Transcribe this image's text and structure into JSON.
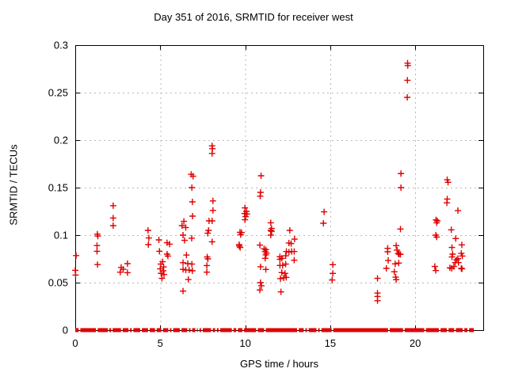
{
  "chart_data": {
    "type": "scatter",
    "title": "Day 351 of 2016, SRMTID for receiver west",
    "xlabel": "GPS time / hours",
    "ylabel": "SRMTID / TECUs",
    "xlim": [
      0,
      24
    ],
    "ylim": [
      0,
      0.3
    ],
    "xticks": [
      0,
      5,
      10,
      15,
      20
    ],
    "xtick_labels": [
      "0",
      "5",
      "10",
      "15",
      "20"
    ],
    "yticks": [
      0,
      0.05,
      0.1,
      0.15,
      0.2,
      0.25,
      0.3
    ],
    "ytick_labels": [
      "0",
      "0.05",
      "0.1",
      "0.15",
      "0.2",
      "0.25",
      "0.3"
    ],
    "grid": true,
    "legend": "none",
    "marker": "plus",
    "marker_color": "#e00000",
    "grid_color": "#b8b8b8",
    "axis_color": "#000000",
    "series": [
      {
        "name": "SRMTID",
        "points": [
          [
            0.0,
            0.063
          ],
          [
            0.02,
            0.058
          ],
          [
            0.05,
            0.0785
          ],
          [
            1.28,
            0.089
          ],
          [
            1.28,
            0.083
          ],
          [
            1.3,
            0.101
          ],
          [
            1.33,
            0.099
          ],
          [
            1.31,
            0.069
          ],
          [
            2.23,
            0.131
          ],
          [
            2.23,
            0.118
          ],
          [
            2.23,
            0.11
          ],
          [
            2.65,
            0.061
          ],
          [
            2.7,
            0.066
          ],
          [
            2.82,
            0.064
          ],
          [
            3.07,
            0.07
          ],
          [
            3.07,
            0.0605
          ],
          [
            4.28,
            0.105
          ],
          [
            4.33,
            0.097
          ],
          [
            4.3,
            0.09
          ],
          [
            4.92,
            0.095
          ],
          [
            4.95,
            0.083
          ],
          [
            5.4,
            0.092
          ],
          [
            5.55,
            0.0905
          ],
          [
            5.4,
            0.08
          ],
          [
            5.45,
            0.078
          ],
          [
            5.14,
            0.072
          ],
          [
            5.03,
            0.0695
          ],
          [
            5.2,
            0.0665
          ],
          [
            5.0,
            0.0645
          ],
          [
            5.17,
            0.0625
          ],
          [
            5.05,
            0.0598
          ],
          [
            5.22,
            0.0585
          ],
          [
            5.1,
            0.0545
          ],
          [
            6.28,
            0.11
          ],
          [
            6.39,
            0.1145
          ],
          [
            6.5,
            0.108
          ],
          [
            6.82,
            0.164
          ],
          [
            6.93,
            0.162
          ],
          [
            6.86,
            0.15
          ],
          [
            6.89,
            0.135
          ],
          [
            6.9,
            0.12
          ],
          [
            6.34,
            0.1
          ],
          [
            6.43,
            0.0945
          ],
          [
            6.85,
            0.0967
          ],
          [
            6.54,
            0.079
          ],
          [
            6.34,
            0.071
          ],
          [
            6.62,
            0.07
          ],
          [
            6.86,
            0.0695
          ],
          [
            6.34,
            0.064
          ],
          [
            6.5,
            0.0633
          ],
          [
            6.7,
            0.0633
          ],
          [
            6.89,
            0.0625
          ],
          [
            6.65,
            0.0533
          ],
          [
            6.34,
            0.0411
          ],
          [
            7.79,
            0.102
          ],
          [
            7.76,
            0.077
          ],
          [
            7.8,
            0.075
          ],
          [
            7.74,
            0.068
          ],
          [
            7.74,
            0.061
          ],
          [
            7.87,
            0.115
          ],
          [
            8.05,
            0.115
          ],
          [
            7.84,
            0.105
          ],
          [
            8.05,
            0.194
          ],
          [
            8.07,
            0.191
          ],
          [
            8.05,
            0.186
          ],
          [
            8.1,
            0.136
          ],
          [
            8.1,
            0.126
          ],
          [
            8.05,
            0.093
          ],
          [
            9.69,
            0.103
          ],
          [
            9.78,
            0.1028
          ],
          [
            9.73,
            0.1005
          ],
          [
            9.64,
            0.09
          ],
          [
            9.65,
            0.0885
          ],
          [
            9.7,
            0.087
          ],
          [
            9.98,
            0.1287
          ],
          [
            10.07,
            0.125
          ],
          [
            9.96,
            0.1228
          ],
          [
            10.1,
            0.1222
          ],
          [
            10.02,
            0.1195
          ],
          [
            9.98,
            0.1162
          ],
          [
            10.93,
            0.1625
          ],
          [
            10.9,
            0.145
          ],
          [
            10.88,
            0.141
          ],
          [
            10.86,
            0.0895
          ],
          [
            11.11,
            0.0856
          ],
          [
            11.21,
            0.0847
          ],
          [
            11.17,
            0.0828
          ],
          [
            11.25,
            0.0811
          ],
          [
            11.21,
            0.0792
          ],
          [
            11.17,
            0.0756
          ],
          [
            10.9,
            0.0667
          ],
          [
            11.21,
            0.0639
          ],
          [
            10.9,
            0.05
          ],
          [
            10.95,
            0.0467
          ],
          [
            10.86,
            0.0422
          ],
          [
            11.5,
            0.113
          ],
          [
            11.55,
            0.107
          ],
          [
            11.5,
            0.105
          ],
          [
            11.55,
            0.104
          ],
          [
            11.5,
            0.1
          ],
          [
            12.62,
            0.105
          ],
          [
            12.9,
            0.0958
          ],
          [
            12.57,
            0.0917
          ],
          [
            12.7,
            0.0911
          ],
          [
            12.42,
            0.0828
          ],
          [
            12.57,
            0.0822
          ],
          [
            12.73,
            0.0828
          ],
          [
            12.88,
            0.0828
          ],
          [
            12.15,
            0.0756
          ],
          [
            12.04,
            0.0745
          ],
          [
            12.88,
            0.0736
          ],
          [
            12.04,
            0.0773
          ],
          [
            12.38,
            0.0783
          ],
          [
            12.04,
            0.0681
          ],
          [
            12.2,
            0.0681
          ],
          [
            12.38,
            0.0695
          ],
          [
            12.15,
            0.0606
          ],
          [
            12.34,
            0.0597
          ],
          [
            12.07,
            0.0542
          ],
          [
            12.26,
            0.055
          ],
          [
            12.41,
            0.0556
          ],
          [
            12.1,
            0.0403
          ],
          [
            14.64,
            0.1245
          ],
          [
            14.6,
            0.1125
          ],
          [
            15.15,
            0.0689
          ],
          [
            15.15,
            0.0597
          ],
          [
            15.11,
            0.0528
          ],
          [
            17.78,
            0.0545
          ],
          [
            17.78,
            0.039
          ],
          [
            17.78,
            0.0355
          ],
          [
            17.78,
            0.031
          ],
          [
            18.38,
            0.0861
          ],
          [
            18.38,
            0.0825
          ],
          [
            18.88,
            0.0889
          ],
          [
            18.93,
            0.0842
          ],
          [
            19.0,
            0.0806
          ],
          [
            19.05,
            0.08
          ],
          [
            19.13,
            0.0797
          ],
          [
            18.41,
            0.0733
          ],
          [
            18.82,
            0.0697
          ],
          [
            19.03,
            0.0706
          ],
          [
            18.3,
            0.065
          ],
          [
            18.77,
            0.0614
          ],
          [
            18.85,
            0.0558
          ],
          [
            18.88,
            0.0531
          ],
          [
            19.16,
            0.1648
          ],
          [
            19.16,
            0.15
          ],
          [
            19.13,
            0.1064
          ],
          [
            19.55,
            0.281
          ],
          [
            19.56,
            0.2785
          ],
          [
            19.54,
            0.263
          ],
          [
            19.53,
            0.245
          ],
          [
            21.22,
            0.116
          ],
          [
            21.3,
            0.115
          ],
          [
            21.26,
            0.113
          ],
          [
            21.21,
            0.1
          ],
          [
            21.26,
            0.098
          ],
          [
            21.15,
            0.067
          ],
          [
            21.21,
            0.0628
          ],
          [
            21.88,
            0.1583
          ],
          [
            21.93,
            0.1556
          ],
          [
            21.88,
            0.138
          ],
          [
            21.86,
            0.134
          ],
          [
            22.51,
            0.1258
          ],
          [
            22.12,
            0.1056
          ],
          [
            22.38,
            0.0964
          ],
          [
            22.74,
            0.0897
          ],
          [
            22.16,
            0.087
          ],
          [
            22.2,
            0.08
          ],
          [
            22.71,
            0.0808
          ],
          [
            22.77,
            0.078
          ],
          [
            22.16,
            0.077
          ],
          [
            22.43,
            0.0739
          ],
          [
            22.51,
            0.0753
          ],
          [
            22.35,
            0.0711
          ],
          [
            22.54,
            0.0711
          ],
          [
            22.04,
            0.0656
          ],
          [
            22.15,
            0.065
          ],
          [
            22.27,
            0.067
          ],
          [
            22.71,
            0.065
          ],
          [
            22.75,
            0.0645
          ]
        ]
      }
    ],
    "zero_band_segments": [
      [
        0,
        0.2
      ],
      [
        0.3,
        1.22
      ],
      [
        1.32,
        1.92
      ],
      [
        2.0,
        2.11
      ],
      [
        2.2,
        2.69
      ],
      [
        2.79,
        3.13
      ],
      [
        3.22,
        3.32
      ],
      [
        3.42,
        3.82
      ],
      [
        3.92,
        4.28
      ],
      [
        4.38,
        4.69
      ],
      [
        4.79,
        5.06
      ],
      [
        5.16,
        5.47
      ],
      [
        5.57,
        5.66
      ],
      [
        5.76,
        6.15
      ],
      [
        6.25,
        6.59
      ],
      [
        6.69,
        6.78
      ],
      [
        6.88,
        7.06
      ],
      [
        7.16,
        7.21
      ],
      [
        7.31,
        7.4
      ],
      [
        7.5,
        7.99
      ],
      [
        8.09,
        8.23
      ],
      [
        8.33,
        8.43
      ],
      [
        8.53,
        9.21
      ],
      [
        9.31,
        9.47
      ],
      [
        9.57,
        9.83
      ],
      [
        9.93,
        10.64
      ],
      [
        10.74,
        11.11
      ],
      [
        11.21,
        13.05
      ],
      [
        13.15,
        13.44
      ],
      [
        13.54,
        13.63
      ],
      [
        13.73,
        14.19
      ],
      [
        14.29,
        14.38
      ],
      [
        14.48,
        15.08
      ],
      [
        15.18,
        18.4
      ],
      [
        18.5,
        19.28
      ],
      [
        19.38,
        20.53
      ],
      [
        20.63,
        21.39
      ],
      [
        21.49,
        21.86
      ],
      [
        21.96,
        22.29
      ],
      [
        22.39,
        22.79
      ],
      [
        22.89,
        23.07
      ],
      [
        23.17,
        23.45
      ]
    ]
  }
}
